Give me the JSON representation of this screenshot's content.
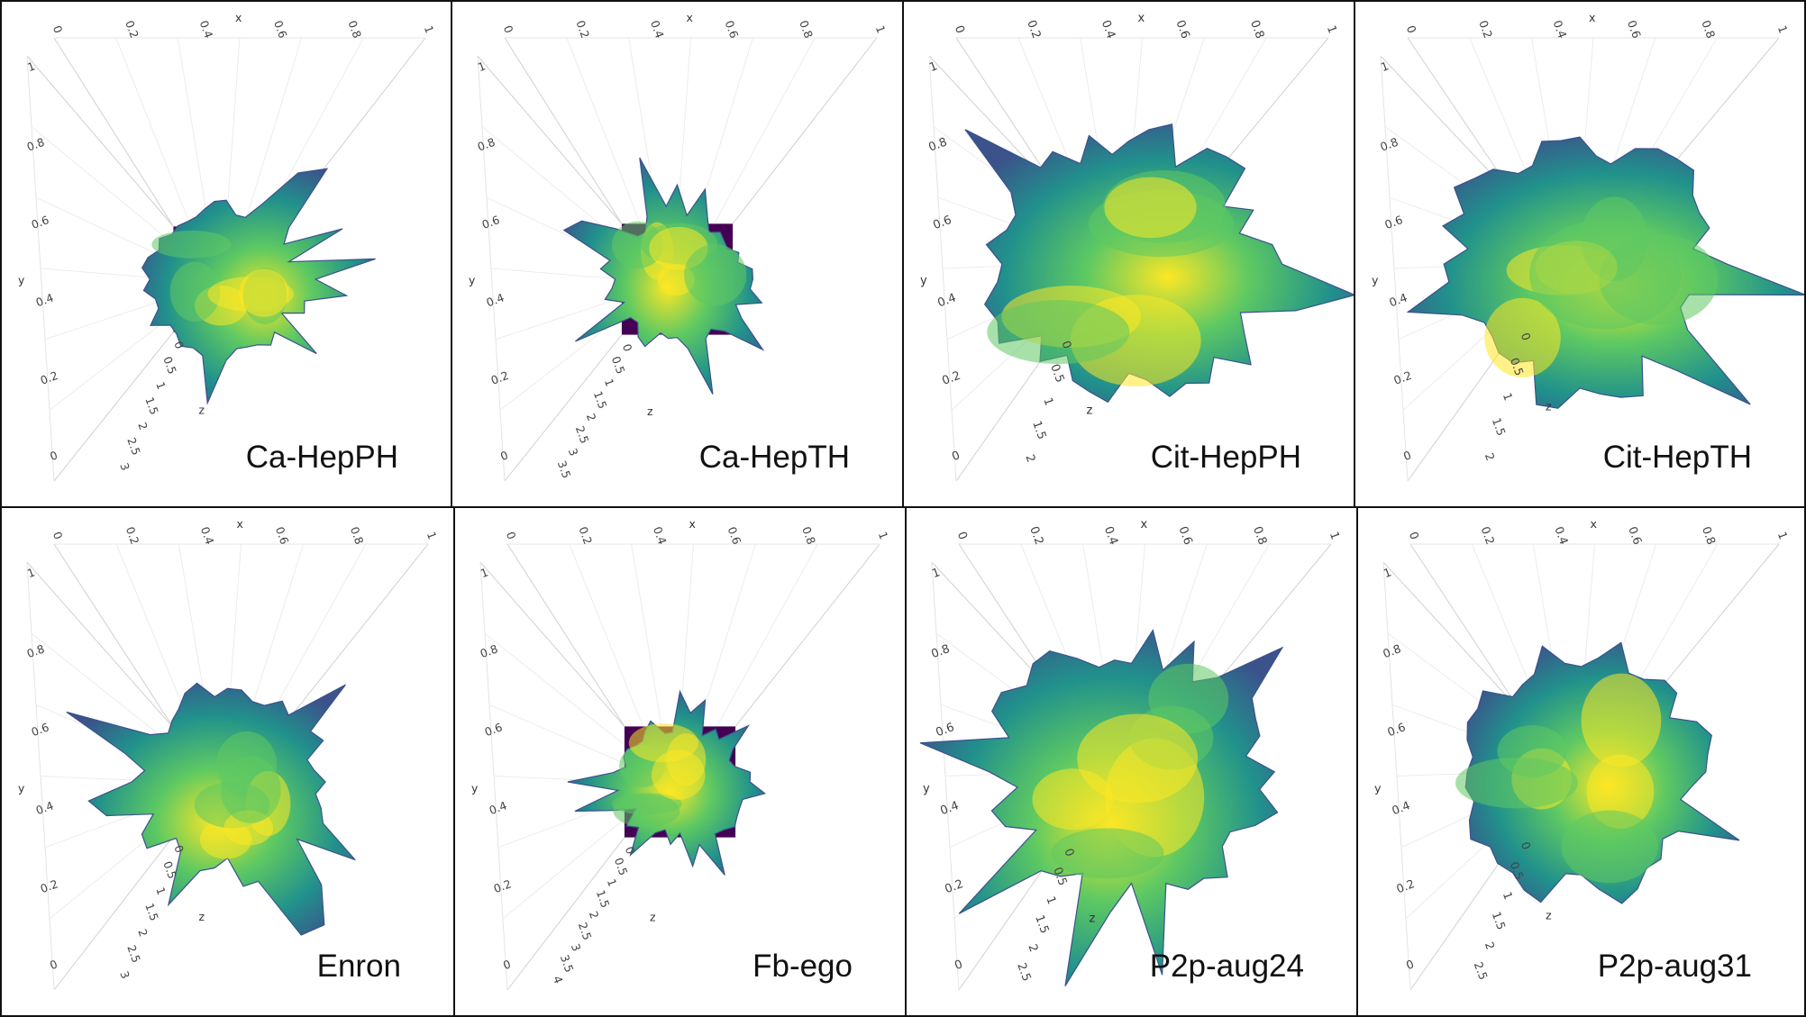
{
  "panels": [
    {
      "caption": "Ca-HepPH",
      "x_axis": {
        "name": "x",
        "ticks": [
          "0",
          "0.2",
          "0.4",
          "0.6",
          "0.8",
          "1"
        ]
      },
      "y_axis": {
        "name": "y",
        "ticks": [
          "1",
          "0.8",
          "0.6",
          "0.4",
          "0.2",
          "0"
        ]
      },
      "z_axis": {
        "name": "z",
        "ticks": [
          "0",
          "0.5",
          "1",
          "1.5",
          "2",
          "2.5",
          "3"
        ]
      }
    },
    {
      "caption": "Ca-HepTH",
      "x_axis": {
        "name": "x",
        "ticks": [
          "0",
          "0.2",
          "0.4",
          "0.6",
          "0.8",
          "1"
        ]
      },
      "y_axis": {
        "name": "y",
        "ticks": [
          "1",
          "0.8",
          "0.6",
          "0.4",
          "0.2",
          "0"
        ]
      },
      "z_axis": {
        "name": "z",
        "ticks": [
          "0",
          "0.5",
          "1",
          "1.5",
          "2",
          "2.5",
          "3",
          "3.5"
        ]
      }
    },
    {
      "caption": "Cit-HepPH",
      "x_axis": {
        "name": "x",
        "ticks": [
          "0",
          "0.2",
          "0.4",
          "0.6",
          "0.8",
          "1"
        ]
      },
      "y_axis": {
        "name": "y",
        "ticks": [
          "1",
          "0.8",
          "0.6",
          "0.4",
          "0.2",
          "0"
        ]
      },
      "z_axis": {
        "name": "z",
        "ticks": [
          "0",
          "0.5",
          "1",
          "1.5",
          "2"
        ]
      }
    },
    {
      "caption": "Cit-HepTH",
      "x_axis": {
        "name": "x",
        "ticks": [
          "0",
          "0.2",
          "0.4",
          "0.6",
          "0.8",
          "1"
        ]
      },
      "y_axis": {
        "name": "y",
        "ticks": [
          "1",
          "0.8",
          "0.6",
          "0.4",
          "0.2",
          "0"
        ]
      },
      "z_axis": {
        "name": "z",
        "ticks": [
          "0",
          "0.5",
          "1",
          "1.5",
          "2"
        ]
      }
    },
    {
      "caption": "Enron",
      "x_axis": {
        "name": "x",
        "ticks": [
          "0",
          "0.2",
          "0.4",
          "0.6",
          "0.8",
          "1"
        ]
      },
      "y_axis": {
        "name": "y",
        "ticks": [
          "1",
          "0.8",
          "0.6",
          "0.4",
          "0.2",
          "0"
        ]
      },
      "z_axis": {
        "name": "z",
        "ticks": [
          "0",
          "0.5",
          "1",
          "1.5",
          "2",
          "2.5",
          "3"
        ]
      }
    },
    {
      "caption": "Fb-ego",
      "x_axis": {
        "name": "x",
        "ticks": [
          "0",
          "0.2",
          "0.4",
          "0.6",
          "0.8",
          "1"
        ]
      },
      "y_axis": {
        "name": "y",
        "ticks": [
          "1",
          "0.8",
          "0.6",
          "0.4",
          "0.2",
          "0"
        ]
      },
      "z_axis": {
        "name": "z",
        "ticks": [
          "0",
          "0.5",
          "1",
          "1.5",
          "2",
          "2.5",
          "3",
          "3.5",
          "4"
        ]
      }
    },
    {
      "caption": "P2p-aug24",
      "x_axis": {
        "name": "x",
        "ticks": [
          "0",
          "0.2",
          "0.4",
          "0.6",
          "0.8",
          "1"
        ]
      },
      "y_axis": {
        "name": "y",
        "ticks": [
          "1",
          "0.8",
          "0.6",
          "0.4",
          "0.2",
          "0"
        ]
      },
      "z_axis": {
        "name": "z",
        "ticks": [
          "0",
          "0.5",
          "1",
          "1.5",
          "2",
          "2.5"
        ]
      }
    },
    {
      "caption": "P2p-aug31",
      "x_axis": {
        "name": "x",
        "ticks": [
          "0",
          "0.2",
          "0.4",
          "0.6",
          "0.8",
          "1"
        ]
      },
      "y_axis": {
        "name": "y",
        "ticks": [
          "1",
          "0.8",
          "0.6",
          "0.4",
          "0.2",
          "0"
        ]
      },
      "z_axis": {
        "name": "z",
        "ticks": [
          "0",
          "0.5",
          "1",
          "1.5",
          "2",
          "2.5"
        ]
      }
    }
  ],
  "colorscale": [
    "#440154",
    "#3b528b",
    "#21918c",
    "#5ec962",
    "#fde725"
  ]
}
